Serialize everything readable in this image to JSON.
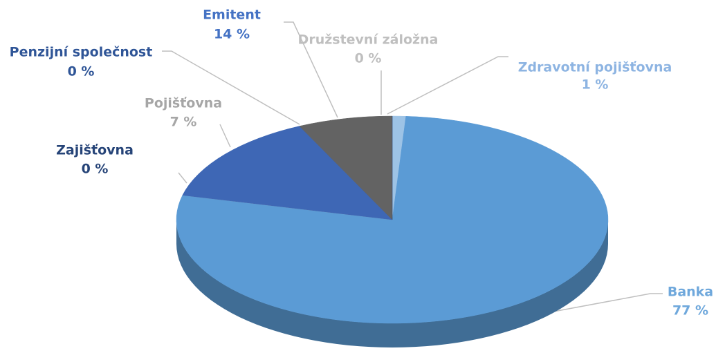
{
  "chart_data": {
    "type": "pie3d",
    "categories": [
      "Zdravotní pojišťovna",
      "Banka",
      "Družstevní záložna",
      "Emitent",
      "Penzijní společnost",
      "Pojišťovna",
      "Zajišťovna"
    ],
    "values": [
      1,
      77,
      0,
      14,
      0,
      7,
      0
    ],
    "value_labels": [
      "1 %",
      "77 %",
      "0 %",
      "14 %",
      "0 %",
      "7 %",
      "0 %"
    ],
    "colors": [
      "#9dc3e6",
      "#5b9bd5",
      "#a5a5a5",
      "#3e67b5",
      "#2f5597",
      "#636363",
      "#264478"
    ],
    "label_colors": [
      "#8db4e2",
      "#6fa8dc",
      "#bfbfbf",
      "#4472c4",
      "#2f5597",
      "#a6a6a6",
      "#264478"
    ]
  }
}
